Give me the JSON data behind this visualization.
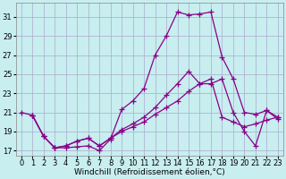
{
  "xlabel": "Windchill (Refroidissement éolien,°C)",
  "bg_color": "#c8eef0",
  "grid_color": "#aaaacc",
  "line_color": "#880088",
  "marker": "+",
  "markersize": 4,
  "linewidth": 0.9,
  "xlim": [
    -0.5,
    23.5
  ],
  "ylim": [
    16.5,
    32.5
  ],
  "xticks": [
    0,
    1,
    2,
    3,
    4,
    5,
    6,
    7,
    8,
    9,
    10,
    11,
    12,
    13,
    14,
    15,
    16,
    17,
    18,
    19,
    20,
    21,
    22,
    23
  ],
  "yticks": [
    17,
    19,
    21,
    23,
    25,
    27,
    29,
    31
  ],
  "xlabel_fontsize": 6.5,
  "tick_fontsize": 6,
  "line1_x": [
    0,
    1,
    2,
    3,
    4,
    5,
    6,
    7,
    8,
    9,
    10,
    11,
    12,
    13,
    14,
    15,
    16,
    17,
    18,
    19,
    20,
    21,
    22,
    23
  ],
  "line1_y": [
    21.0,
    20.7,
    18.5,
    17.3,
    17.3,
    17.4,
    17.5,
    17.0,
    18.2,
    21.3,
    22.2,
    23.5,
    27.0,
    29.0,
    31.5,
    31.2,
    31.3,
    31.5,
    26.8,
    24.5,
    21.0,
    20.8,
    21.2,
    20.5
  ],
  "line2_x": [
    1,
    2,
    3,
    4,
    5,
    6,
    7,
    8,
    9,
    10,
    11,
    12,
    13,
    14,
    15,
    16,
    17,
    18,
    19,
    20,
    21,
    22,
    23
  ],
  "line2_y": [
    20.7,
    18.5,
    17.3,
    17.5,
    18.0,
    18.3,
    17.5,
    18.3,
    19.2,
    19.8,
    20.5,
    21.5,
    22.8,
    24.0,
    25.3,
    24.0,
    24.0,
    24.5,
    21.0,
    19.0,
    17.5,
    21.2,
    20.3
  ],
  "line3_x": [
    1,
    2,
    3,
    4,
    5,
    6,
    7,
    8,
    9,
    10,
    11,
    12,
    13,
    14,
    15,
    16,
    17,
    18,
    19,
    20,
    21,
    22,
    23
  ],
  "line3_y": [
    20.7,
    18.5,
    17.3,
    17.5,
    18.0,
    18.3,
    17.5,
    18.3,
    19.0,
    19.5,
    20.0,
    20.8,
    21.5,
    22.2,
    23.2,
    24.0,
    24.5,
    20.5,
    20.0,
    19.5,
    19.8,
    20.2,
    20.5
  ]
}
